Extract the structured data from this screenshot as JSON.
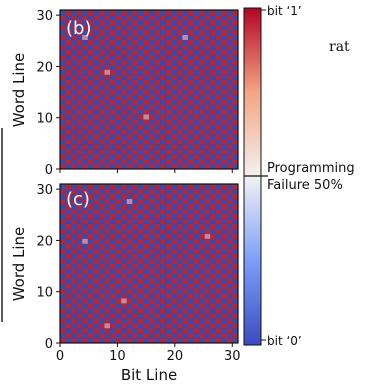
{
  "side_text": {
    "line1": "rat"
  },
  "chart_data": [
    {
      "type": "heatmap",
      "panel_label": "(b)",
      "xlabel": "",
      "ylabel": "Word Line",
      "xlim": [
        0,
        31
      ],
      "ylim": [
        0,
        31
      ],
      "yticks": [
        "0",
        "10",
        "20",
        "30"
      ],
      "grid_size": [
        32,
        32
      ],
      "pattern": "checkerboard of bit '1' and bit '0'",
      "anomalous_cells": [
        [
          4,
          26
        ],
        [
          22,
          26
        ],
        [
          8,
          19
        ],
        [
          15,
          10
        ]
      ]
    },
    {
      "type": "heatmap",
      "panel_label": "(c)",
      "xlabel": "Bit Line",
      "ylabel": "Word Line",
      "xlim": [
        0,
        31
      ],
      "ylim": [
        0,
        31
      ],
      "xticks": [
        "0",
        "10",
        "20",
        "30"
      ],
      "yticks": [
        "0",
        "10",
        "20",
        "30"
      ],
      "grid_size": [
        32,
        32
      ],
      "pattern": "checkerboard of bit '1' and bit '0'",
      "anomalous_cells": [
        [
          26,
          21
        ],
        [
          12,
          28
        ],
        [
          8,
          3
        ],
        [
          11,
          8
        ],
        [
          4,
          20
        ]
      ]
    }
  ],
  "colorbar": {
    "top_label": "bit ‘1’",
    "mid_label_line1": "Programming",
    "mid_label_line2": "Failure 50%",
    "bottom_label": "bit ‘0’",
    "colors": [
      "#3a4bab",
      "#eeeeee",
      "#b2182b"
    ]
  }
}
